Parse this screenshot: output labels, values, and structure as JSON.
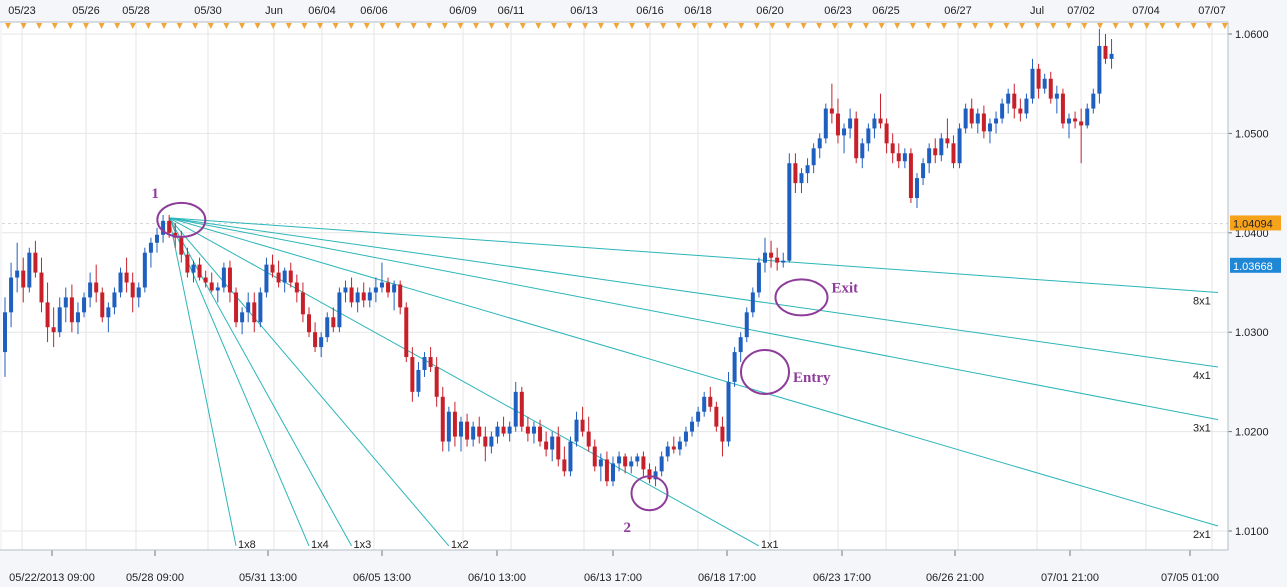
{
  "chart_data": {
    "type": "candlestick",
    "colors": {
      "up": "#1f5fbf",
      "down": "#c8202a",
      "fan": "#2bb5b8",
      "annotation": "#8e3c9a",
      "current_price_tag": "#f7a21b",
      "bid_tag": "#1e87d6",
      "grid": "#e6e6e6",
      "background": "#ffffff"
    },
    "y_axis": {
      "position": "right",
      "ylim": [
        1.0085,
        1.0605
      ],
      "ticks": [
        "1.0600",
        "1.0500",
        "1.0400",
        "1.0300",
        "1.0200",
        "1.0100"
      ],
      "tick_values": [
        1.06,
        1.05,
        1.04,
        1.03,
        1.02,
        1.01
      ]
    },
    "x_axis_top_labels": [
      "05/23",
      "05/26",
      "05/28",
      "05/30",
      "Jun",
      "06/04",
      "06/06",
      "06/09",
      "06/11",
      "06/13",
      "06/16",
      "06/18",
      "06/20",
      "06/23",
      "06/25",
      "06/27",
      "Jul",
      "07/02",
      "07/04",
      "07/07"
    ],
    "x_axis_bottom_labels": [
      "05/22/2013 09:00",
      "05/28 09:00",
      "05/31 13:00",
      "06/05 13:00",
      "06/10 13:00",
      "06/13 17:00",
      "06/18 17:00",
      "06/23 17:00",
      "06/26 21:00",
      "07/01 21:00",
      "07/05 01:00"
    ],
    "price_tags": {
      "current": "1.04094",
      "bid": "1.03668"
    },
    "fan_labels": [
      "1x8",
      "1x4",
      "1x3",
      "1x2",
      "1x1",
      "2x1",
      "3x1",
      "4x1",
      "8x1"
    ],
    "annotations": {
      "point1": "1",
      "point2": "2",
      "entry": "Entry",
      "exit": "Exit"
    },
    "candles_ohlc": [
      [
        1.028,
        1.0335,
        1.0255,
        1.032
      ],
      [
        1.032,
        1.037,
        1.0305,
        1.0355
      ],
      [
        1.0355,
        1.039,
        1.034,
        1.0362
      ],
      [
        1.0362,
        1.0375,
        1.033,
        1.0345
      ],
      [
        1.0345,
        1.0385,
        1.034,
        1.038
      ],
      [
        1.038,
        1.0392,
        1.0355,
        1.036
      ],
      [
        1.036,
        1.0375,
        1.032,
        1.033
      ],
      [
        1.033,
        1.035,
        1.029,
        1.0305
      ],
      [
        1.0305,
        1.0325,
        1.0285,
        1.03
      ],
      [
        1.03,
        1.0335,
        1.0295,
        1.0325
      ],
      [
        1.0325,
        1.0345,
        1.031,
        1.0335
      ],
      [
        1.0335,
        1.0348,
        1.03,
        1.031
      ],
      [
        1.031,
        1.033,
        1.0298,
        1.032
      ],
      [
        1.032,
        1.034,
        1.0315,
        1.0335
      ],
      [
        1.0335,
        1.036,
        1.0325,
        1.035
      ],
      [
        1.035,
        1.0368,
        1.033,
        1.034
      ],
      [
        1.034,
        1.0345,
        1.031,
        1.0315
      ],
      [
        1.0315,
        1.033,
        1.03,
        1.0325
      ],
      [
        1.0325,
        1.0345,
        1.0318,
        1.034
      ],
      [
        1.034,
        1.0365,
        1.0335,
        1.036
      ],
      [
        1.036,
        1.0375,
        1.034,
        1.035
      ],
      [
        1.035,
        1.036,
        1.032,
        1.0335
      ],
      [
        1.0335,
        1.035,
        1.0325,
        1.0345
      ],
      [
        1.0345,
        1.0385,
        1.034,
        1.038
      ],
      [
        1.038,
        1.0395,
        1.0365,
        1.039
      ],
      [
        1.039,
        1.0405,
        1.038,
        1.0398
      ],
      [
        1.0398,
        1.0418,
        1.039,
        1.0412
      ],
      [
        1.0412,
        1.0418,
        1.0395,
        1.04
      ],
      [
        1.04,
        1.041,
        1.0385,
        1.0395
      ],
      [
        1.0395,
        1.0402,
        1.037,
        1.0378
      ],
      [
        1.0378,
        1.0385,
        1.0355,
        1.036
      ],
      [
        1.036,
        1.0372,
        1.035,
        1.0368
      ],
      [
        1.0368,
        1.0375,
        1.0352,
        1.0355
      ],
      [
        1.0355,
        1.0362,
        1.0345,
        1.035
      ],
      [
        1.035,
        1.036,
        1.034,
        1.0342
      ],
      [
        1.0342,
        1.035,
        1.033,
        1.0345
      ],
      [
        1.0345,
        1.037,
        1.034,
        1.0365
      ],
      [
        1.0365,
        1.0372,
        1.033,
        1.034
      ],
      [
        1.034,
        1.0345,
        1.0305,
        1.031
      ],
      [
        1.031,
        1.0325,
        1.0298,
        1.032
      ],
      [
        1.032,
        1.034,
        1.031,
        1.033
      ],
      [
        1.033,
        1.034,
        1.03,
        1.031
      ],
      [
        1.031,
        1.0345,
        1.0305,
        1.034
      ],
      [
        1.034,
        1.0375,
        1.0335,
        1.0368
      ],
      [
        1.0368,
        1.0378,
        1.0355,
        1.036
      ],
      [
        1.036,
        1.0372,
        1.0345,
        1.035
      ],
      [
        1.035,
        1.0365,
        1.034,
        1.0362
      ],
      [
        1.0362,
        1.037,
        1.0345,
        1.035
      ],
      [
        1.035,
        1.0358,
        1.033,
        1.034
      ],
      [
        1.034,
        1.035,
        1.031,
        1.0318
      ],
      [
        1.0318,
        1.0325,
        1.0295,
        1.03
      ],
      [
        1.03,
        1.031,
        1.028,
        1.0285
      ],
      [
        1.0285,
        1.03,
        1.0275,
        1.0295
      ],
      [
        1.0295,
        1.032,
        1.029,
        1.0315
      ],
      [
        1.0315,
        1.0325,
        1.03,
        1.0305
      ],
      [
        1.0305,
        1.0345,
        1.03,
        1.034
      ],
      [
        1.034,
        1.0352,
        1.033,
        1.0345
      ],
      [
        1.0345,
        1.0355,
        1.0325,
        1.033
      ],
      [
        1.033,
        1.0345,
        1.032,
        1.034
      ],
      [
        1.034,
        1.035,
        1.0325,
        1.0332
      ],
      [
        1.0332,
        1.0345,
        1.0325,
        1.034
      ],
      [
        1.034,
        1.0355,
        1.033,
        1.0345
      ],
      [
        1.0345,
        1.037,
        1.034,
        1.035
      ],
      [
        1.035,
        1.0355,
        1.0335,
        1.034
      ],
      [
        1.034,
        1.0352,
        1.0322,
        1.0348
      ],
      [
        1.0348,
        1.0352,
        1.0318,
        1.0325
      ],
      [
        1.0325,
        1.033,
        1.027,
        1.0275
      ],
      [
        1.0275,
        1.0285,
        1.023,
        1.024
      ],
      [
        1.024,
        1.027,
        1.0235,
        1.0262
      ],
      [
        1.0262,
        1.028,
        1.0255,
        1.0275
      ],
      [
        1.0275,
        1.0285,
        1.026,
        1.0265
      ],
      [
        1.0265,
        1.0275,
        1.0225,
        1.0235
      ],
      [
        1.0235,
        1.0245,
        1.018,
        1.019
      ],
      [
        1.019,
        1.0225,
        1.018,
        1.022
      ],
      [
        1.022,
        1.023,
        1.0185,
        1.0195
      ],
      [
        1.0195,
        1.0215,
        1.018,
        1.021
      ],
      [
        1.021,
        1.0218,
        1.0185,
        1.0192
      ],
      [
        1.0192,
        1.021,
        1.0185,
        1.0205
      ],
      [
        1.0205,
        1.0215,
        1.0188,
        1.0195
      ],
      [
        1.0195,
        1.0205,
        1.017,
        1.0185
      ],
      [
        1.0185,
        1.02,
        1.0178,
        1.0195
      ],
      [
        1.0195,
        1.021,
        1.0188,
        1.0205
      ],
      [
        1.0205,
        1.0215,
        1.0195,
        1.0198
      ],
      [
        1.0198,
        1.021,
        1.019,
        1.0205
      ],
      [
        1.0205,
        1.025,
        1.02,
        1.024
      ],
      [
        1.024,
        1.0245,
        1.02,
        1.0205
      ],
      [
        1.0205,
        1.0215,
        1.019,
        1.0198
      ],
      [
        1.0198,
        1.021,
        1.0188,
        1.0205
      ],
      [
        1.0205,
        1.0212,
        1.0185,
        1.019
      ],
      [
        1.019,
        1.02,
        1.0175,
        1.0182
      ],
      [
        1.0182,
        1.02,
        1.017,
        1.0195
      ],
      [
        1.0195,
        1.0205,
        1.0165,
        1.0172
      ],
      [
        1.0172,
        1.0185,
        1.0155,
        1.016
      ],
      [
        1.016,
        1.0195,
        1.0155,
        1.019
      ],
      [
        1.019,
        1.022,
        1.0185,
        1.0212
      ],
      [
        1.0212,
        1.0225,
        1.0195,
        1.02
      ],
      [
        1.02,
        1.0215,
        1.018,
        1.0185
      ],
      [
        1.0185,
        1.0192,
        1.016,
        1.0165
      ],
      [
        1.0165,
        1.0178,
        1.015,
        1.0172
      ],
      [
        1.0172,
        1.018,
        1.0145,
        1.015
      ],
      [
        1.015,
        1.0175,
        1.0145,
        1.0168
      ],
      [
        1.0168,
        1.018,
        1.016,
        1.0175
      ],
      [
        1.0175,
        1.0178,
        1.0158,
        1.0165
      ],
      [
        1.0165,
        1.0175,
        1.0158,
        1.017
      ],
      [
        1.017,
        1.0178,
        1.0165,
        1.0175
      ],
      [
        1.0175,
        1.018,
        1.0155,
        1.0162
      ],
      [
        1.0162,
        1.0168,
        1.0148,
        1.0152
      ],
      [
        1.0152,
        1.0165,
        1.0145,
        1.016
      ],
      [
        1.016,
        1.018,
        1.0155,
        1.0175
      ],
      [
        1.0175,
        1.019,
        1.017,
        1.0185
      ],
      [
        1.0185,
        1.0195,
        1.0178,
        1.0182
      ],
      [
        1.0182,
        1.0195,
        1.0176,
        1.019
      ],
      [
        1.019,
        1.0205,
        1.0185,
        1.02
      ],
      [
        1.02,
        1.0215,
        1.0195,
        1.021
      ],
      [
        1.021,
        1.0225,
        1.0205,
        1.022
      ],
      [
        1.022,
        1.024,
        1.0215,
        1.0235
      ],
      [
        1.0235,
        1.0245,
        1.022,
        1.0225
      ],
      [
        1.0225,
        1.023,
        1.02,
        1.0205
      ],
      [
        1.0205,
        1.0215,
        1.0175,
        1.019
      ],
      [
        1.019,
        1.026,
        1.0185,
        1.025
      ],
      [
        1.025,
        1.0285,
        1.0245,
        1.028
      ],
      [
        1.028,
        1.03,
        1.027,
        1.0295
      ],
      [
        1.0295,
        1.0325,
        1.029,
        1.032
      ],
      [
        1.032,
        1.0345,
        1.0315,
        1.034
      ],
      [
        1.034,
        1.0375,
        1.0335,
        1.037
      ],
      [
        1.037,
        1.0395,
        1.036,
        1.038
      ],
      [
        1.038,
        1.0392,
        1.0365,
        1.0375
      ],
      [
        1.0375,
        1.0385,
        1.0362,
        1.037
      ],
      [
        1.037,
        1.038,
        1.0365,
        1.0372
      ],
      [
        1.0372,
        1.048,
        1.037,
        1.047
      ],
      [
        1.047,
        1.048,
        1.044,
        1.045
      ],
      [
        1.045,
        1.0465,
        1.044,
        1.046
      ],
      [
        1.046,
        1.0475,
        1.045,
        1.0468
      ],
      [
        1.0468,
        1.049,
        1.046,
        1.0485
      ],
      [
        1.0485,
        1.05,
        1.0475,
        1.0495
      ],
      [
        1.0495,
        1.053,
        1.049,
        1.0525
      ],
      [
        1.0525,
        1.055,
        1.051,
        1.052
      ],
      [
        1.052,
        1.0535,
        1.049,
        1.0498
      ],
      [
        1.0498,
        1.051,
        1.048,
        1.0505
      ],
      [
        1.0505,
        1.0525,
        1.0495,
        1.0515
      ],
      [
        1.0515,
        1.0522,
        1.047,
        1.0475
      ],
      [
        1.0475,
        1.0495,
        1.0465,
        1.049
      ],
      [
        1.049,
        1.051,
        1.0482,
        1.0505
      ],
      [
        1.0505,
        1.052,
        1.0495,
        1.0515
      ],
      [
        1.0515,
        1.054,
        1.0505,
        1.051
      ],
      [
        1.051,
        1.0515,
        1.048,
        1.049
      ],
      [
        1.049,
        1.05,
        1.047,
        1.048
      ],
      [
        1.048,
        1.049,
        1.0465,
        1.0472
      ],
      [
        1.0472,
        1.0485,
        1.0465,
        1.048
      ],
      [
        1.048,
        1.0485,
        1.043,
        1.0435
      ],
      [
        1.0435,
        1.046,
        1.0425,
        1.0455
      ],
      [
        1.0455,
        1.0475,
        1.0448,
        1.047
      ],
      [
        1.047,
        1.049,
        1.046,
        1.0485
      ],
      [
        1.0485,
        1.0495,
        1.047,
        1.0478
      ],
      [
        1.0478,
        1.05,
        1.0472,
        1.0495
      ],
      [
        1.0495,
        1.0515,
        1.0485,
        1.049
      ],
      [
        1.049,
        1.0498,
        1.0465,
        1.047
      ],
      [
        1.047,
        1.051,
        1.0465,
        1.0505
      ],
      [
        1.0505,
        1.053,
        1.05,
        1.0525
      ],
      [
        1.0525,
        1.0535,
        1.0505,
        1.051
      ],
      [
        1.051,
        1.0525,
        1.05,
        1.052
      ],
      [
        1.052,
        1.0528,
        1.0495,
        1.0502
      ],
      [
        1.0502,
        1.0515,
        1.049,
        1.051
      ],
      [
        1.051,
        1.0522,
        1.05,
        1.0515
      ],
      [
        1.0515,
        1.0535,
        1.051,
        1.053
      ],
      [
        1.053,
        1.0545,
        1.052,
        1.054
      ],
      [
        1.054,
        1.055,
        1.0515,
        1.0525
      ],
      [
        1.0525,
        1.0535,
        1.0512,
        1.052
      ],
      [
        1.052,
        1.054,
        1.0515,
        1.0535
      ],
      [
        1.0535,
        1.0575,
        1.053,
        1.0565
      ],
      [
        1.0565,
        1.057,
        1.0535,
        1.0545
      ],
      [
        1.0545,
        1.056,
        1.054,
        1.0555
      ],
      [
        1.0555,
        1.0562,
        1.053,
        1.0535
      ],
      [
        1.0535,
        1.0548,
        1.052,
        1.054
      ],
      [
        1.054,
        1.0545,
        1.0505,
        1.051
      ],
      [
        1.051,
        1.052,
        1.0495,
        1.0515
      ],
      [
        1.0515,
        1.0522,
        1.0505,
        1.0512
      ],
      [
        1.0512,
        1.0525,
        1.047,
        1.0508
      ],
      [
        1.0508,
        1.053,
        1.0505,
        1.0525
      ],
      [
        1.0525,
        1.0545,
        1.052,
        1.054
      ],
      [
        1.054,
        1.0605,
        1.053,
        1.0588
      ],
      [
        1.0588,
        1.06,
        1.057,
        1.0575
      ],
      [
        1.0575,
        1.0595,
        1.0565,
        1.058
      ]
    ],
    "fan_origin": {
      "bar": 27,
      "price": 1.0415
    },
    "fan_lines": [
      {
        "label": "8x1",
        "end_price": 1.034
      },
      {
        "label": "4x1",
        "end_price": 1.0265
      },
      {
        "label": "3x1",
        "end_price": 1.0212
      },
      {
        "label": "2x1",
        "end_price": 1.0105
      },
      {
        "label": "1x1",
        "end_bar": 124,
        "end_price": 1.0085
      },
      {
        "label": "1x2",
        "end_bar": 73,
        "end_price": 1.0085
      },
      {
        "label": "1x3",
        "end_bar": 57,
        "end_price": 1.0085
      },
      {
        "label": "1x4",
        "end_bar": 50,
        "end_price": 1.0085
      },
      {
        "label": "1x8",
        "end_bar": 38,
        "end_price": 1.0085
      }
    ],
    "annotation_points": {
      "point1": {
        "bar": 29,
        "price": 1.0413
      },
      "point2": {
        "bar": 106,
        "price": 1.0138
      },
      "entry": {
        "bar": 125,
        "price": 1.026
      },
      "exit": {
        "bar": 131,
        "price": 1.0335
      }
    }
  }
}
